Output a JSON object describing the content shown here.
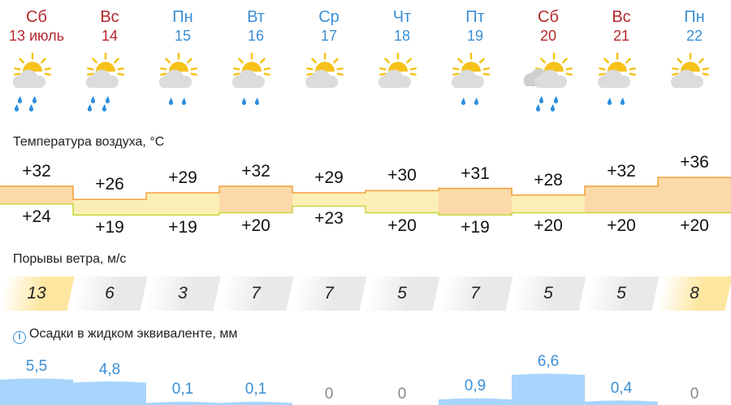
{
  "days": [
    {
      "dow": "Сб",
      "date": "13 июль",
      "weekend": true,
      "icon": "sun-cloud-heavy-rain-icon",
      "rain": 2,
      "tmax": 32,
      "tmin": 24,
      "wind": 13,
      "wind_hot": true,
      "precip": 5.5,
      "precip_label": "5,5"
    },
    {
      "dow": "Вс",
      "date": "14",
      "weekend": true,
      "icon": "sun-cloud-heavy-rain-icon",
      "rain": 2,
      "tmax": 26,
      "tmin": 19,
      "wind": 6,
      "wind_hot": false,
      "precip": 4.8,
      "precip_label": "4,8"
    },
    {
      "dow": "Пн",
      "date": "15",
      "weekend": false,
      "icon": "sun-cloud-light-rain-icon",
      "rain": 1,
      "tmax": 29,
      "tmin": 19,
      "wind": 3,
      "wind_hot": false,
      "precip": 0.1,
      "precip_label": "0,1"
    },
    {
      "dow": "Вт",
      "date": "16",
      "weekend": false,
      "icon": "sun-cloud-light-rain-icon",
      "rain": 1,
      "tmax": 32,
      "tmin": 20,
      "wind": 7,
      "wind_hot": false,
      "precip": 0.1,
      "precip_label": "0,1"
    },
    {
      "dow": "Ср",
      "date": "17",
      "weekend": false,
      "icon": "sun-cloud-icon",
      "rain": 0,
      "tmax": 29,
      "tmin": 23,
      "wind": 7,
      "wind_hot": false,
      "precip": 0,
      "precip_label": "0"
    },
    {
      "dow": "Чт",
      "date": "18",
      "weekend": false,
      "icon": "sun-cloud-icon",
      "rain": 0,
      "tmax": 30,
      "tmin": 20,
      "wind": 5,
      "wind_hot": false,
      "precip": 0,
      "precip_label": "0"
    },
    {
      "dow": "Пт",
      "date": "19",
      "weekend": false,
      "icon": "sun-cloud-light-rain-icon",
      "rain": 1,
      "tmax": 31,
      "tmin": 19,
      "wind": 7,
      "wind_hot": false,
      "precip": 0.9,
      "precip_label": "0,9"
    },
    {
      "dow": "Сб",
      "date": "20",
      "weekend": true,
      "icon": "sun-clouds-heavy-rain-icon",
      "rain": 2,
      "tmax": 28,
      "tmin": 20,
      "wind": 5,
      "wind_hot": false,
      "precip": 6.6,
      "precip_label": "6,6"
    },
    {
      "dow": "Вс",
      "date": "21",
      "weekend": true,
      "icon": "sun-cloud-light-rain-icon",
      "rain": 1,
      "tmax": 32,
      "tmin": 20,
      "wind": 5,
      "wind_hot": false,
      "precip": 0.4,
      "precip_label": "0,4"
    },
    {
      "dow": "Пн",
      "date": "22",
      "weekend": false,
      "icon": "sun-cloud-icon",
      "rain": 0,
      "tmax": 36,
      "tmin": 20,
      "wind": 8,
      "wind_hot": true,
      "precip": 0,
      "precip_label": "0"
    }
  ],
  "sections": {
    "temp": "Температура воздуха, °C",
    "wind": "Порывы ветра, м/с",
    "precip": "Осадки в жидком эквиваленте, мм",
    "info_icon": "i"
  },
  "colors": {
    "weekend": "#b5282e",
    "weekday": "#3b8fd6",
    "precip_bar": "#a8d5fb",
    "precip_text": "#3b8fd6",
    "zero_text": "#888888"
  }
}
